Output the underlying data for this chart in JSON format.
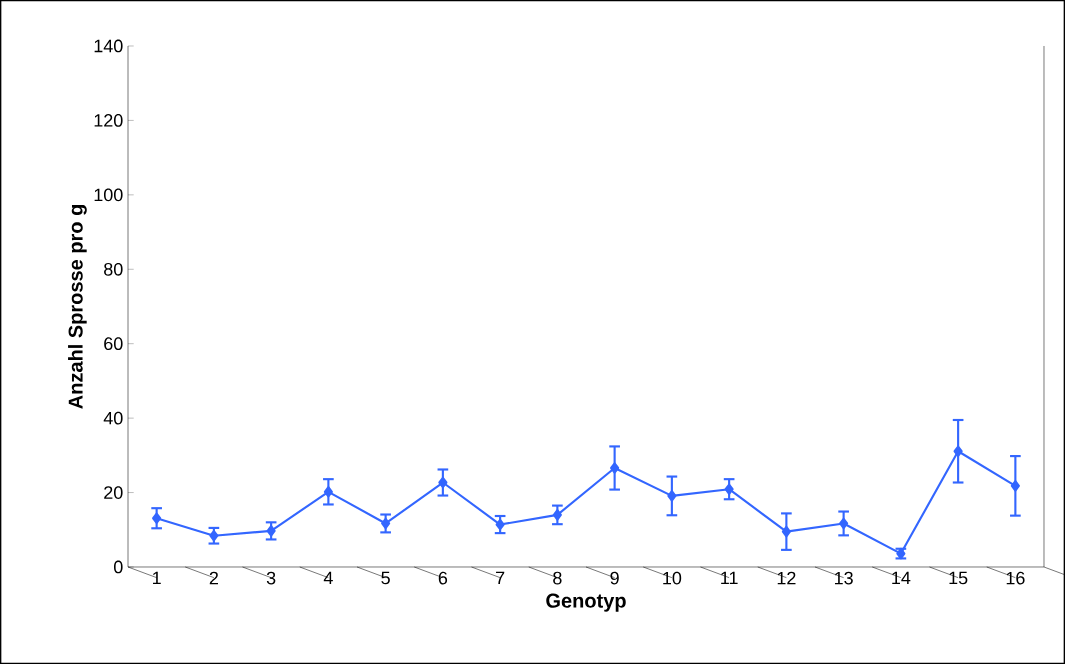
{
  "chart_data": {
    "type": "line",
    "xlabel": "Genotyp",
    "ylabel": "Anzahl Sprosse pro g",
    "categories": [
      "1",
      "2",
      "3",
      "4",
      "5",
      "6",
      "7",
      "8",
      "9",
      "10",
      "11",
      "12",
      "13",
      "14",
      "15",
      "16"
    ],
    "series": [
      {
        "color": "#3366ff",
        "values": [
          13.1,
          8.4,
          9.7,
          20.2,
          11.7,
          22.7,
          11.4,
          14.0,
          26.6,
          19.1,
          20.9,
          9.5,
          11.7,
          3.6,
          31.1,
          21.8
        ],
        "errors": [
          2.7,
          2.1,
          2.3,
          3.4,
          2.4,
          3.5,
          2.3,
          2.5,
          5.8,
          5.2,
          2.7,
          4.9,
          3.2,
          1.3,
          8.4,
          8.0
        ]
      }
    ],
    "ylim": [
      0,
      140
    ],
    "yticks": [
      0,
      20,
      40,
      60,
      80,
      100,
      120,
      140
    ],
    "grid": false,
    "marker": "diamond",
    "line_style": "solid"
  }
}
